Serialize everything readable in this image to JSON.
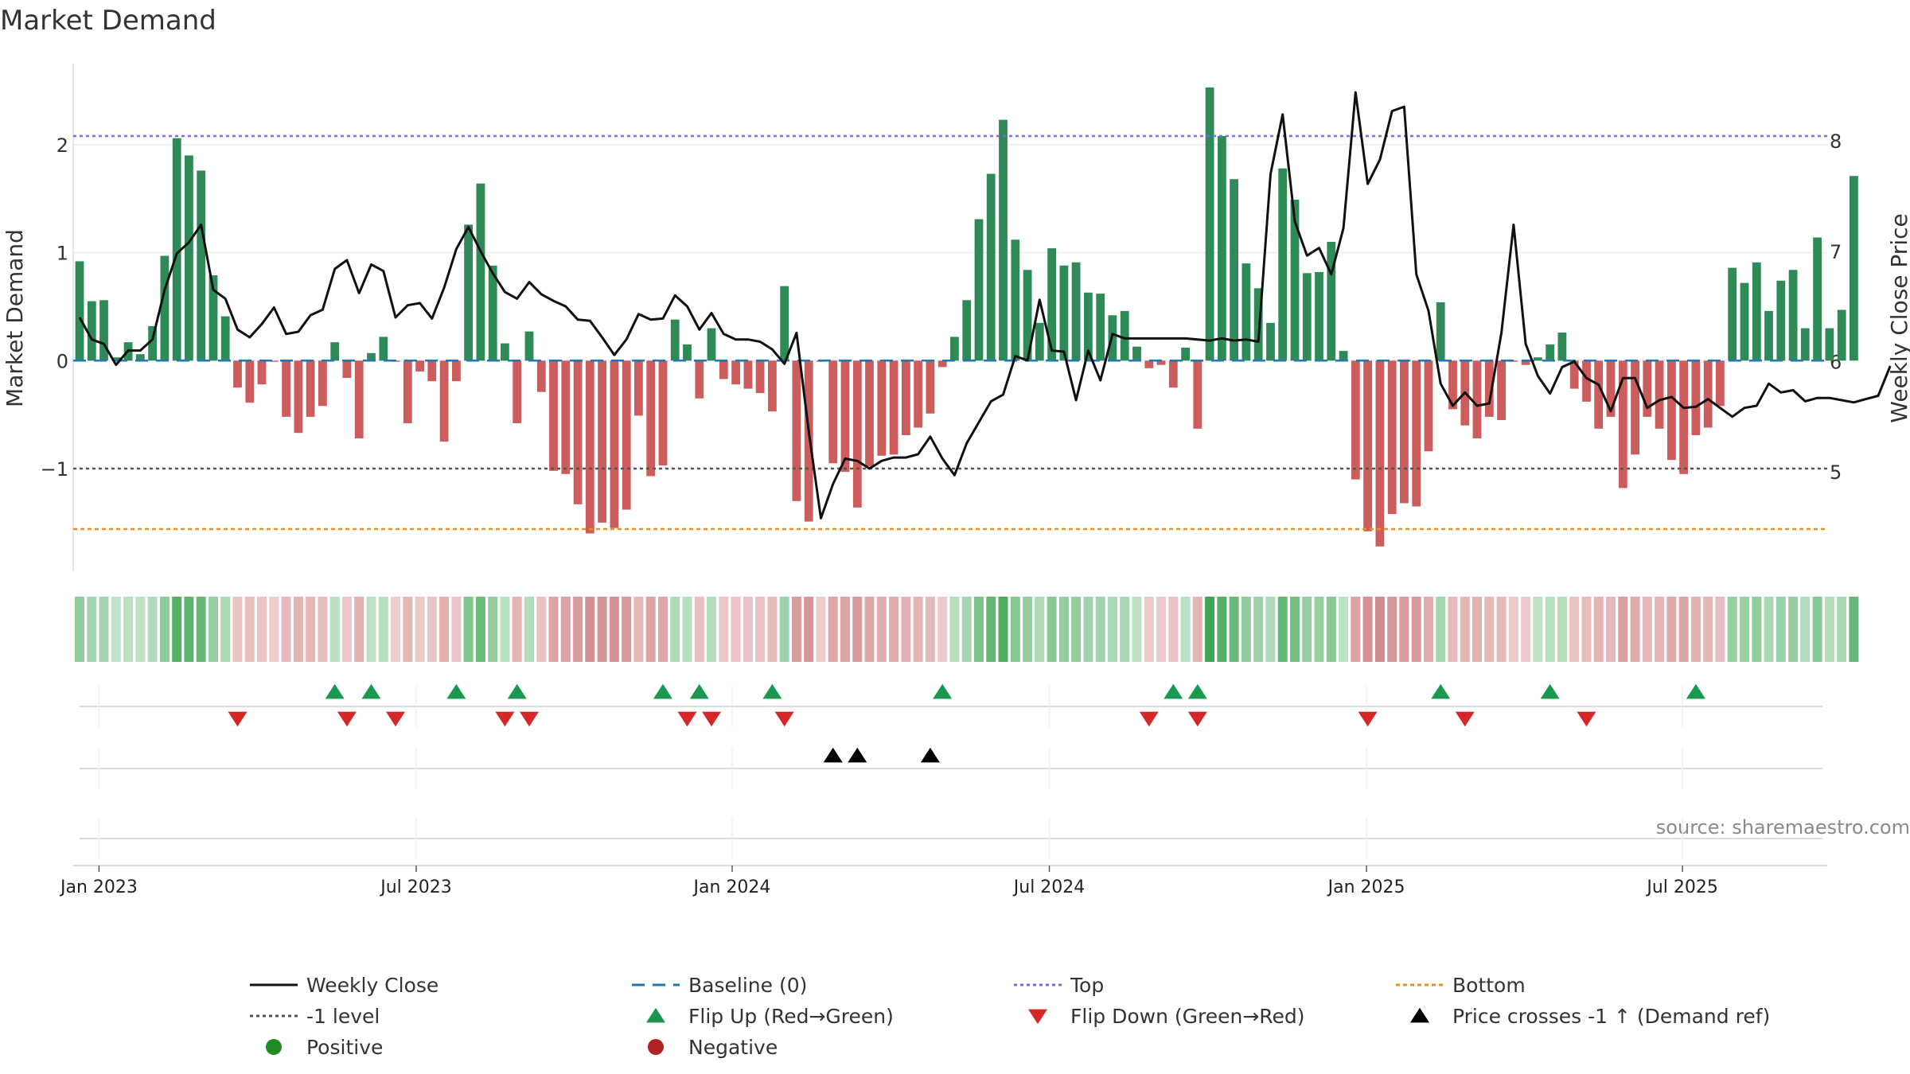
{
  "chart_data": {
    "type": "bar",
    "title": "Market Demand",
    "ylabel_left": "Market Demand",
    "ylabel_right": "Weekly Close Price",
    "source": "source: sharemaestro.com",
    "x_ticks": [
      "Jan 2023",
      "Jul 2023",
      "Jan 2024",
      "Jul 2024",
      "Jan 2025",
      "Jul 2025"
    ],
    "y_ticks_left": [
      "2",
      "1",
      "0",
      "−1"
    ],
    "y_ticks_right": [
      "8",
      "7",
      "6",
      "5"
    ],
    "ylim_left": [
      -1.95,
      2.75
    ],
    "ylim_right": [
      4.1,
      8.7
    ],
    "levels": {
      "top": 2.08,
      "minus_one": -1.0,
      "bottom": -1.56,
      "baseline": 0
    },
    "demand": [
      0.92,
      0.55,
      0.56,
      0.03,
      0.17,
      0.06,
      0.32,
      0.97,
      2.06,
      1.9,
      1.76,
      0.79,
      0.41,
      -0.25,
      -0.39,
      -0.22,
      -0.01,
      -0.52,
      -0.67,
      -0.52,
      -0.42,
      0.17,
      -0.16,
      -0.72,
      0.07,
      0.22,
      -0.01,
      -0.58,
      -0.1,
      -0.19,
      -0.75,
      -0.19,
      1.26,
      1.64,
      0.88,
      0.16,
      -0.58,
      0.27,
      -0.29,
      -1.02,
      -1.05,
      -1.33,
      -1.6,
      -1.5,
      -1.55,
      -1.38,
      -0.51,
      -1.07,
      -0.97,
      0.38,
      0.15,
      -0.35,
      0.3,
      -0.17,
      -0.22,
      -0.26,
      -0.3,
      -0.47,
      0.69,
      -1.3,
      -1.49,
      -0.01,
      -0.95,
      -1.03,
      -1.36,
      -0.98,
      -0.88,
      -0.87,
      -0.69,
      -0.62,
      -0.49,
      -0.06,
      0.22,
      0.56,
      1.31,
      1.73,
      2.23,
      1.12,
      0.84,
      0.35,
      1.04,
      0.88,
      0.91,
      0.63,
      0.62,
      0.42,
      0.46,
      0.13,
      -0.07,
      -0.04,
      -0.25,
      0.12,
      -0.63,
      2.53,
      2.08,
      1.68,
      0.9,
      0.67,
      0.35,
      1.78,
      1.49,
      0.81,
      0.82,
      1.1,
      0.09,
      -1.1,
      -1.58,
      -1.72,
      -1.42,
      -1.32,
      -1.35,
      -0.84,
      0.54,
      -0.45,
      -0.6,
      -0.72,
      -0.52,
      -0.55,
      -0.01,
      -0.04,
      0.03,
      0.15,
      0.26,
      -0.26,
      -0.38,
      -0.63,
      -0.52,
      -1.18,
      -0.87,
      -0.52,
      -0.63,
      -0.92,
      -1.05,
      -0.69,
      -0.62,
      -0.42,
      0.86,
      0.72,
      0.91,
      0.46,
      0.74,
      0.84,
      0.3,
      1.14,
      0.3,
      0.47,
      1.71
    ],
    "weekly_close": [
      6.4,
      6.2,
      6.16,
      5.97,
      6.1,
      6.1,
      6.2,
      6.65,
      6.98,
      7.08,
      7.24,
      6.65,
      6.57,
      6.29,
      6.22,
      6.34,
      6.49,
      6.25,
      6.27,
      6.42,
      6.47,
      6.84,
      6.92,
      6.62,
      6.88,
      6.82,
      6.4,
      6.51,
      6.53,
      6.39,
      6.67,
      7.02,
      7.22,
      7.0,
      6.8,
      6.63,
      6.57,
      6.72,
      6.61,
      6.55,
      6.5,
      6.38,
      6.37,
      6.22,
      6.06,
      6.2,
      6.43,
      6.38,
      6.39,
      6.6,
      6.5,
      6.29,
      6.44,
      6.25,
      6.2,
      6.2,
      6.18,
      6.11,
      5.98,
      6.26,
      5.37,
      4.58,
      4.89,
      5.12,
      5.1,
      5.03,
      5.1,
      5.13,
      5.13,
      5.16,
      5.32,
      5.12,
      4.97,
      5.26,
      5.45,
      5.64,
      5.7,
      6.05,
      6.01,
      6.56,
      6.1,
      6.09,
      5.65,
      6.1,
      5.83,
      6.25,
      6.21,
      6.21,
      6.21,
      6.21,
      6.21,
      6.21,
      6.2,
      6.19,
      6.21,
      6.19,
      6.2,
      6.18,
      7.7,
      8.24,
      7.27,
      6.96,
      7.03,
      6.79,
      7.21,
      8.44,
      7.61,
      7.83,
      8.27,
      8.31,
      6.79,
      6.46,
      5.8,
      5.6,
      5.72,
      5.6,
      5.62,
      6.26,
      7.24,
      6.16,
      5.87,
      5.71,
      5.95,
      6.0,
      5.85,
      5.79,
      5.55,
      5.85,
      5.85,
      5.58,
      5.65,
      5.68,
      5.58,
      5.59,
      5.66,
      5.58,
      5.5,
      5.58,
      5.6,
      5.8,
      5.72,
      5.74,
      5.64,
      5.67,
      5.67,
      5.65,
      5.63,
      5.66,
      5.69,
      5.96
    ],
    "flip_up_weeks": [
      21,
      24,
      31,
      36,
      48,
      51,
      57,
      71,
      90,
      92,
      112,
      121,
      133
    ],
    "flip_down_weeks": [
      13,
      22,
      26,
      35,
      37,
      50,
      52,
      58,
      88,
      92,
      106,
      114,
      124
    ],
    "cross_weeks": [
      62,
      64,
      70
    ],
    "legend": {
      "weekly_close": "Weekly Close",
      "baseline": "Baseline (0)",
      "top": "Top",
      "bottom": "Bottom",
      "minus_one": "-1 level",
      "flip_up": "Flip Up (Red→Green)",
      "flip_down": "Flip Down (Green→Red)",
      "cross": "Price crosses -1 ↑ (Demand ref)",
      "positive": "Positive",
      "negative": "Negative"
    },
    "colors": {
      "positive_bar": "#2e8b57",
      "negative_bar": "#cd5c5c",
      "price_line": "#111111",
      "baseline": "#1f77b4",
      "top": "#7b68ee",
      "minus_one": "#555555",
      "bottom": "#e09520",
      "flip_up": "#1a9850",
      "flip_down": "#d62728",
      "cross": "#000000",
      "positive_dot": "#228b22",
      "negative_dot": "#b22222"
    }
  }
}
